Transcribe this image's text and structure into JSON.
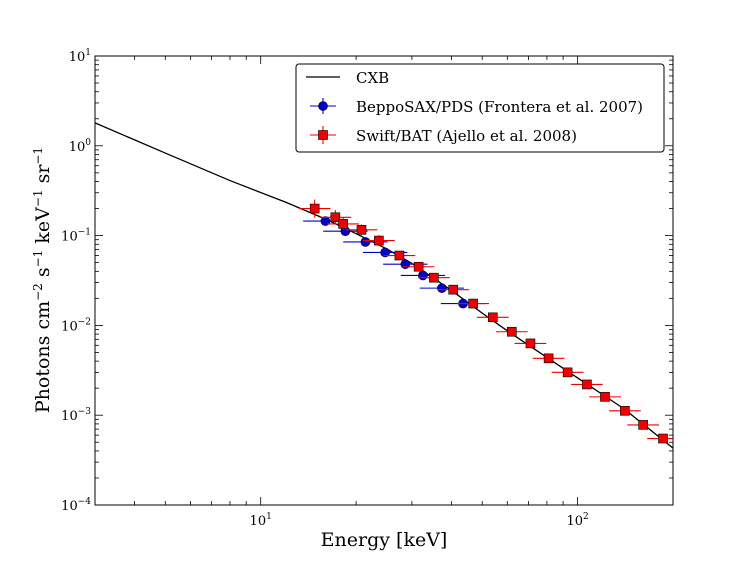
{
  "chart_data": {
    "type": "scatter",
    "title": "",
    "xlabel": "Energy [keV]",
    "ylabel": "Photons cm",
    "ylabel_parts": [
      "Photons cm",
      "−2",
      " s",
      "−1",
      " keV",
      "−1",
      " sr",
      "−1"
    ],
    "xscale": "log",
    "yscale": "log",
    "xlim": [
      3,
      200
    ],
    "ylim": [
      0.0001,
      10
    ],
    "x_ticks": [
      {
        "value": 10,
        "base": "10",
        "exp": "1"
      },
      {
        "value": 100,
        "base": "10",
        "exp": "2"
      }
    ],
    "y_ticks": [
      {
        "value": 0.0001,
        "base": "10",
        "exp": "−4"
      },
      {
        "value": 0.001,
        "base": "10",
        "exp": "−3"
      },
      {
        "value": 0.01,
        "base": "10",
        "exp": "−2"
      },
      {
        "value": 0.1,
        "base": "10",
        "exp": "−1"
      },
      {
        "value": 1,
        "base": "10",
        "exp": "0"
      },
      {
        "value": 10,
        "base": "10",
        "exp": "1"
      }
    ],
    "legend_position": "top-right",
    "series": [
      {
        "name": "CXB",
        "kind": "line",
        "color": "#000000",
        "x": [
          3,
          5,
          8,
          12,
          16,
          20,
          25,
          30,
          40,
          50,
          60,
          80,
          100,
          140,
          200
        ],
        "y": [
          1.8,
          0.83,
          0.41,
          0.235,
          0.153,
          0.105,
          0.071,
          0.049,
          0.0245,
          0.0137,
          0.0087,
          0.0044,
          0.0026,
          0.00118,
          0.00043
        ]
      },
      {
        "name": "BeppoSAX/PDS (Frontera et al. 2007)",
        "kind": "points",
        "marker": "circle",
        "color": "#0000cc",
        "x": [
          16.0,
          18.5,
          21.4,
          24.7,
          28.6,
          32.5,
          37.3,
          43.5
        ],
        "y": [
          0.145,
          0.112,
          0.085,
          0.065,
          0.048,
          0.036,
          0.026,
          0.0175
        ],
        "xerr": [
          0.07,
          0.07,
          0.07,
          0.07,
          0.07,
          0.07,
          0.07,
          0.07
        ],
        "yerr": [
          0.05,
          0.05,
          0.05,
          0.05,
          0.05,
          0.05,
          0.05,
          0.05
        ]
      },
      {
        "name": "Swift/BAT (Ajello et al. 2008)",
        "kind": "points",
        "marker": "square",
        "color": "#ee0000",
        "x": [
          14.8,
          17.2,
          18.2,
          20.8,
          23.6,
          27.4,
          31.5,
          35.2,
          40.5,
          46.8,
          54.0,
          62.0,
          71.0,
          81.0,
          93.0,
          107.0,
          122.0,
          141.0,
          161.0,
          186.0
        ],
        "y": [
          0.2,
          0.16,
          0.135,
          0.116,
          0.088,
          0.06,
          0.045,
          0.034,
          0.025,
          0.0175,
          0.0123,
          0.0085,
          0.0063,
          0.0043,
          0.003,
          0.0022,
          0.0016,
          0.00112,
          0.00078,
          0.00055
        ],
        "xerr": [
          0.05,
          0.05,
          0.05,
          0.05,
          0.05,
          0.05,
          0.05,
          0.05,
          0.05,
          0.05,
          0.05,
          0.05,
          0.05,
          0.05,
          0.05,
          0.05,
          0.05,
          0.05,
          0.05,
          0.05
        ],
        "yerr": [
          0.1,
          0.08,
          0.07,
          0.06,
          0.06,
          0.05,
          0.05,
          0.05,
          0.05,
          0.04,
          0.04,
          0.04,
          0.04,
          0.04,
          0.04,
          0.04,
          0.04,
          0.04,
          0.04,
          0.04
        ]
      }
    ]
  }
}
